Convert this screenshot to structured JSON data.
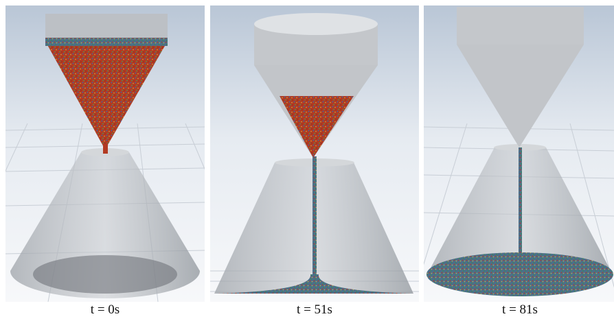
{
  "panels": [
    {
      "caption": "t = 0s"
    },
    {
      "caption": "t = 51s"
    },
    {
      "caption": "t = 81s"
    }
  ]
}
